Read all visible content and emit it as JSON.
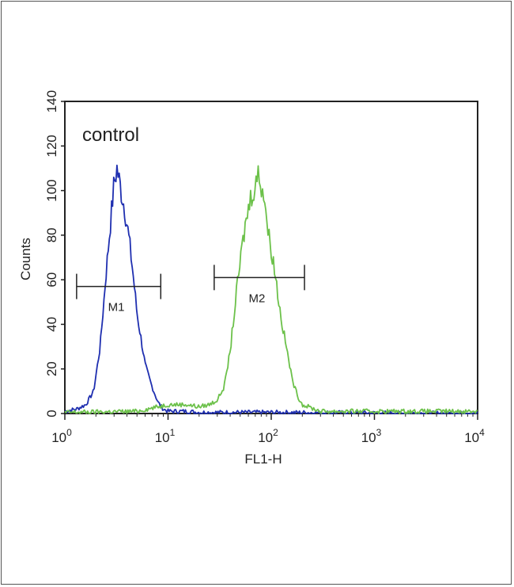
{
  "chart_data": {
    "type": "line",
    "title": "",
    "annotation": "control",
    "xlabel": "FL1-H",
    "ylabel": "Counts",
    "x_scale": "log",
    "xlim": [
      1,
      10000
    ],
    "ylim": [
      0,
      140
    ],
    "x_ticks": [
      {
        "base": "10",
        "exp": "0"
      },
      {
        "base": "10",
        "exp": "1"
      },
      {
        "base": "10",
        "exp": "2"
      },
      {
        "base": "10",
        "exp": "3"
      },
      {
        "base": "10",
        "exp": "4"
      }
    ],
    "y_ticks": [
      "0",
      "20",
      "40",
      "60",
      "80",
      "100",
      "120",
      "140"
    ],
    "series": [
      {
        "color": "#1f2fb0",
        "x": [
          1,
          1.3,
          1.6,
          1.9,
          2.2,
          2.5,
          2.8,
          3.0,
          3.2,
          3.5,
          3.8,
          4.2,
          4.6,
          5.0,
          5.5,
          6.0,
          7.0,
          8.0,
          9.0,
          10,
          15,
          20,
          40,
          60,
          100,
          10000
        ],
        "y": [
          1,
          2,
          4,
          10,
          30,
          62,
          88,
          103,
          110,
          100,
          92,
          78,
          62,
          45,
          33,
          22,
          12,
          5,
          2,
          1,
          1,
          0.5,
          0.5,
          0.5,
          0.5,
          0
        ]
      },
      {
        "color": "#6cc14a",
        "x": [
          1,
          5,
          10,
          15,
          20,
          25,
          30,
          35,
          40,
          45,
          50,
          55,
          60,
          65,
          70,
          75,
          80,
          85,
          90,
          95,
          100,
          110,
          120,
          130,
          140,
          160,
          180,
          200,
          300,
          1000,
          10000
        ],
        "y": [
          0.5,
          1,
          4,
          4,
          3,
          4,
          6,
          12,
          28,
          50,
          68,
          82,
          92,
          99,
          103,
          107,
          103,
          99,
          88,
          79,
          74,
          62,
          48,
          38,
          30,
          15,
          8,
          4,
          1,
          1,
          1
        ]
      }
    ],
    "gates": [
      {
        "label": "M1",
        "x_range": [
          1.3,
          8.5
        ],
        "y": 57
      },
      {
        "label": "M2",
        "x_range": [
          28,
          210
        ],
        "y": 61
      }
    ]
  }
}
